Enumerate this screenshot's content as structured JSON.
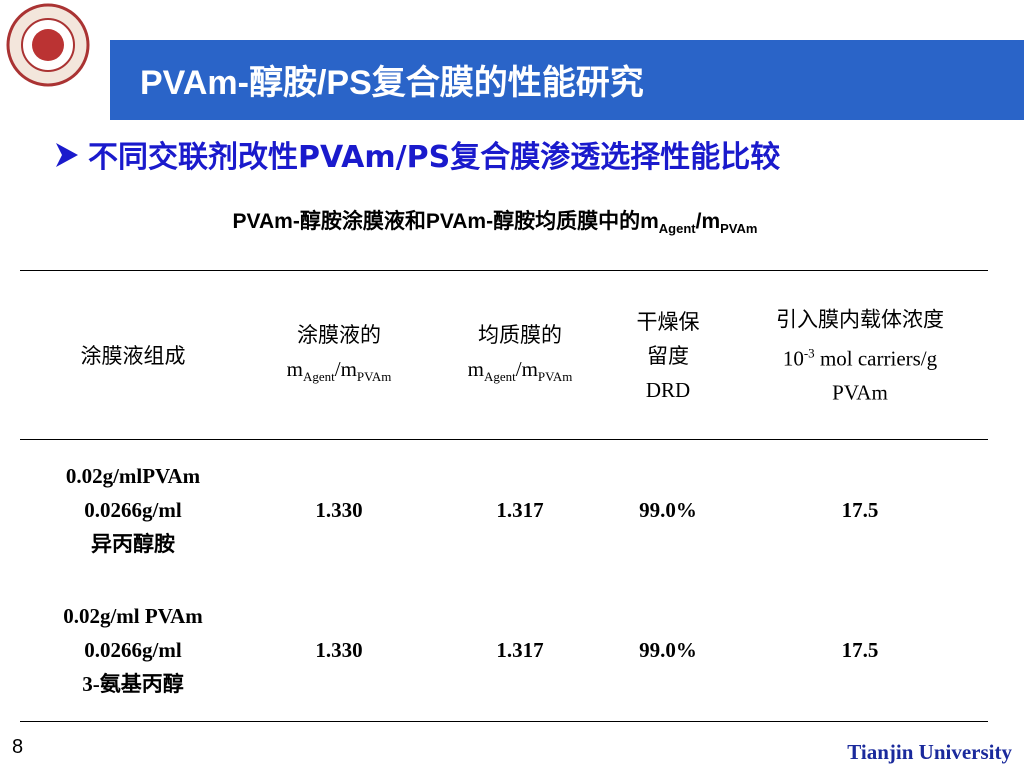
{
  "header": {
    "title": "PVAm-醇胺/PS复合膜的性能研究"
  },
  "bullet": "不同交联剂改性PVAm/PS复合膜渗透选择性能比较",
  "table": {
    "caption": [
      "PVAm-醇胺涂膜液和PVAm-醇胺均质膜中的m",
      {
        "sub": "Agent"
      },
      "/m",
      {
        "sub": "PVAm"
      }
    ],
    "header": [
      [
        [
          "涂膜液组成"
        ]
      ],
      [
        [
          "涂膜液的"
        ],
        [
          "m",
          {
            "sub": "Agent"
          },
          "/m",
          {
            "sub": "PVAm"
          }
        ]
      ],
      [
        [
          "均质膜的"
        ],
        [
          "m",
          {
            "sub": "Agent"
          },
          "/m",
          {
            "sub": "PVAm"
          }
        ]
      ],
      [
        [
          "干燥保"
        ],
        [
          "留度"
        ],
        [
          "DRD"
        ]
      ],
      [
        [
          "引入膜内载体浓度"
        ],
        [
          "10",
          {
            "sup": "-3"
          },
          " mol carriers/g"
        ],
        [
          "PVAm"
        ]
      ]
    ],
    "rows": [
      [
        [
          [
            "0.02g/mlPVAm"
          ],
          [
            "0.0266g/ml"
          ],
          [
            "异丙醇胺"
          ]
        ],
        [
          [
            "1.330"
          ]
        ],
        [
          [
            "1.317"
          ]
        ],
        [
          [
            "99.0%"
          ]
        ],
        [
          [
            "17.5"
          ]
        ]
      ],
      [
        [
          [
            "0.02g/ml PVAm"
          ],
          [
            "0.0266g/ml"
          ],
          [
            "3-氨基丙醇"
          ]
        ],
        [
          [
            "1.330"
          ]
        ],
        [
          [
            "1.317"
          ]
        ],
        [
          [
            "99.0%"
          ]
        ],
        [
          [
            "17.5"
          ]
        ]
      ]
    ]
  },
  "footer": {
    "page": "8",
    "org": "Tianjin University"
  }
}
